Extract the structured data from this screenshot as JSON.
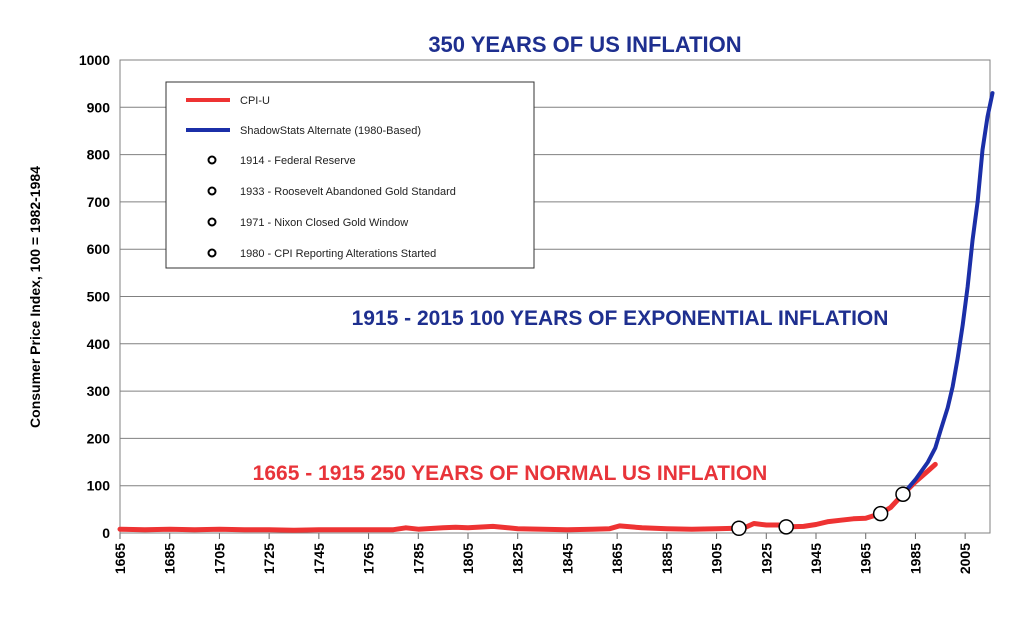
{
  "chart_data": {
    "type": "line",
    "title": "350 YEARS OF US INFLATION",
    "ylabel": "Consumer Price Index, 100 = 1982-1984",
    "xlabel": "",
    "xlim": [
      1665,
      2015
    ],
    "ylim": [
      0,
      1000
    ],
    "yticks": [
      0,
      100,
      200,
      300,
      400,
      500,
      600,
      700,
      800,
      900,
      1000
    ],
    "xticks": [
      1665,
      1685,
      1705,
      1725,
      1745,
      1765,
      1785,
      1805,
      1825,
      1845,
      1865,
      1885,
      1905,
      1925,
      1945,
      1965,
      1985,
      2005
    ],
    "grid": true,
    "legend_position": "top-left",
    "annotations": [
      {
        "text": "1915 - 2015  100 YEARS OF EXPONENTIAL INFLATION",
        "color": "#1e2f8f"
      },
      {
        "text": "1665 - 1915  250 YEARS OF NORMAL US INFLATION",
        "color": "#e8343a"
      }
    ],
    "series": [
      {
        "name": "CPI-U",
        "color": "#ee3333",
        "x": [
          1665,
          1675,
          1685,
          1695,
          1705,
          1715,
          1725,
          1735,
          1745,
          1755,
          1765,
          1775,
          1780,
          1785,
          1795,
          1800,
          1805,
          1815,
          1825,
          1835,
          1845,
          1855,
          1862,
          1866,
          1875,
          1885,
          1895,
          1905,
          1913,
          1917,
          1920,
          1925,
          1930,
          1933,
          1940,
          1945,
          1950,
          1955,
          1960,
          1965,
          1971,
          1975,
          1980,
          1985,
          1990,
          1993
        ],
        "y": [
          8,
          7,
          8,
          7,
          8,
          7,
          7,
          6,
          7,
          7,
          7,
          7,
          11,
          8,
          11,
          12,
          11,
          14,
          9,
          8,
          7,
          8,
          9,
          15,
          11,
          9,
          8,
          9,
          10,
          13,
          20,
          17,
          17,
          13,
          14,
          18,
          24,
          27,
          30,
          31,
          41,
          54,
          82,
          108,
          131,
          145
        ]
      },
      {
        "name": "ShadowStats Alternate (1980-Based)",
        "color": "#1b2fa8",
        "x": [
          1980,
          1985,
          1990,
          1993,
          1995,
          1998,
          2000,
          2002,
          2004,
          2006,
          2008,
          2010,
          2012,
          2014,
          2016
        ],
        "y": [
          82,
          113,
          150,
          180,
          215,
          265,
          310,
          370,
          440,
          520,
          620,
          700,
          810,
          880,
          930
        ]
      }
    ],
    "markers": [
      {
        "label": "1914 - Federal Reserve",
        "x": 1914,
        "y": 10
      },
      {
        "label": "1933 - Roosevelt Abandoned Gold Standard",
        "x": 1933,
        "y": 13
      },
      {
        "label": "1971 - Nixon Closed Gold Window",
        "x": 1971,
        "y": 41
      },
      {
        "label": "1980 - CPI Reporting Alterations Started",
        "x": 1980,
        "y": 82
      }
    ]
  }
}
